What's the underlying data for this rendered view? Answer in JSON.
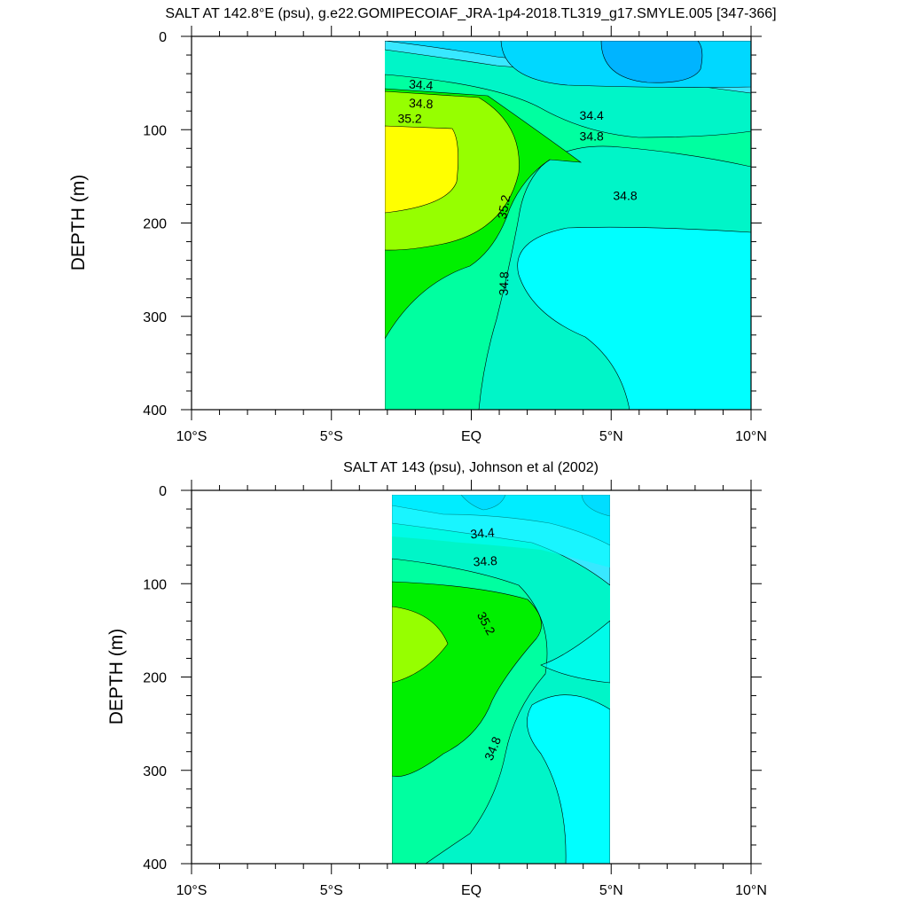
{
  "colors": {
    "levels": [
      34.2,
      34.4,
      34.6,
      34.8,
      35.0,
      35.2,
      35.4
    ],
    "fills": [
      "#00b4ff",
      "#00d8ff",
      "#38e8ff",
      "#00ffff",
      "#00f5c8",
      "#00ffa0",
      "#00f000",
      "#96ff00",
      "#ffff00"
    ]
  },
  "chart_data": [
    {
      "type": "contour",
      "title": "SALT AT 142.8°E (psu), g.e22.GOMIPECOIAF_JRA-1p4-2018.TL319_g17.SMYLE.005 [347-366]",
      "ylabel": "DEPTH (m)",
      "xlim": [
        -10,
        10
      ],
      "ylim": [
        400,
        0
      ],
      "data_extent": [
        -3,
        10
      ],
      "x_ticks": [
        -10,
        -5,
        0,
        5,
        10
      ],
      "x_tick_labels": [
        "10°S",
        "5°S",
        "EQ",
        "5°N",
        "10°N"
      ],
      "y_ticks": [
        0,
        100,
        200,
        300,
        400
      ],
      "y_tick_labels": [
        "0",
        "100",
        "200",
        "300",
        "400"
      ],
      "contour_labels": [
        {
          "text": "34.4",
          "x": -1.8,
          "y": 53,
          "angle": 4
        },
        {
          "text": "34.8",
          "x": -1.8,
          "y": 73,
          "angle": 3
        },
        {
          "text": "35.2",
          "x": -2.2,
          "y": 89,
          "angle": 0
        },
        {
          "text": "34.4",
          "x": 4.3,
          "y": 86,
          "angle": 0
        },
        {
          "text": "34.8",
          "x": 4.3,
          "y": 108,
          "angle": 0
        },
        {
          "text": "34.8",
          "x": 5.5,
          "y": 172,
          "angle": 0
        },
        {
          "text": "35.2",
          "x": 1.2,
          "y": 183,
          "angle": -80
        },
        {
          "text": "34.8",
          "x": 1.2,
          "y": 265,
          "angle": -88
        }
      ]
    },
    {
      "type": "contour",
      "title": "SALT AT 143 (psu), Johnson et al (2002)",
      "ylabel": "DEPTH (m)",
      "xlim": [
        -10,
        10
      ],
      "ylim": [
        400,
        0
      ],
      "data_extent": [
        -2.75,
        5
      ],
      "x_ticks": [
        -10,
        -5,
        0,
        5,
        10
      ],
      "x_tick_labels": [
        "10°S",
        "5°S",
        "EQ",
        "5°N",
        "10°N"
      ],
      "y_ticks": [
        0,
        100,
        200,
        300,
        400
      ],
      "y_tick_labels": [
        "0",
        "100",
        "200",
        "300",
        "400"
      ],
      "contour_labels": [
        {
          "text": "34.4",
          "x": 0.4,
          "y": 47,
          "angle": -5
        },
        {
          "text": "34.8",
          "x": 0.5,
          "y": 77,
          "angle": -3
        },
        {
          "text": "35.2",
          "x": 0.5,
          "y": 143,
          "angle": 62
        },
        {
          "text": "34.8",
          "x": 0.8,
          "y": 277,
          "angle": -68
        }
      ]
    }
  ]
}
